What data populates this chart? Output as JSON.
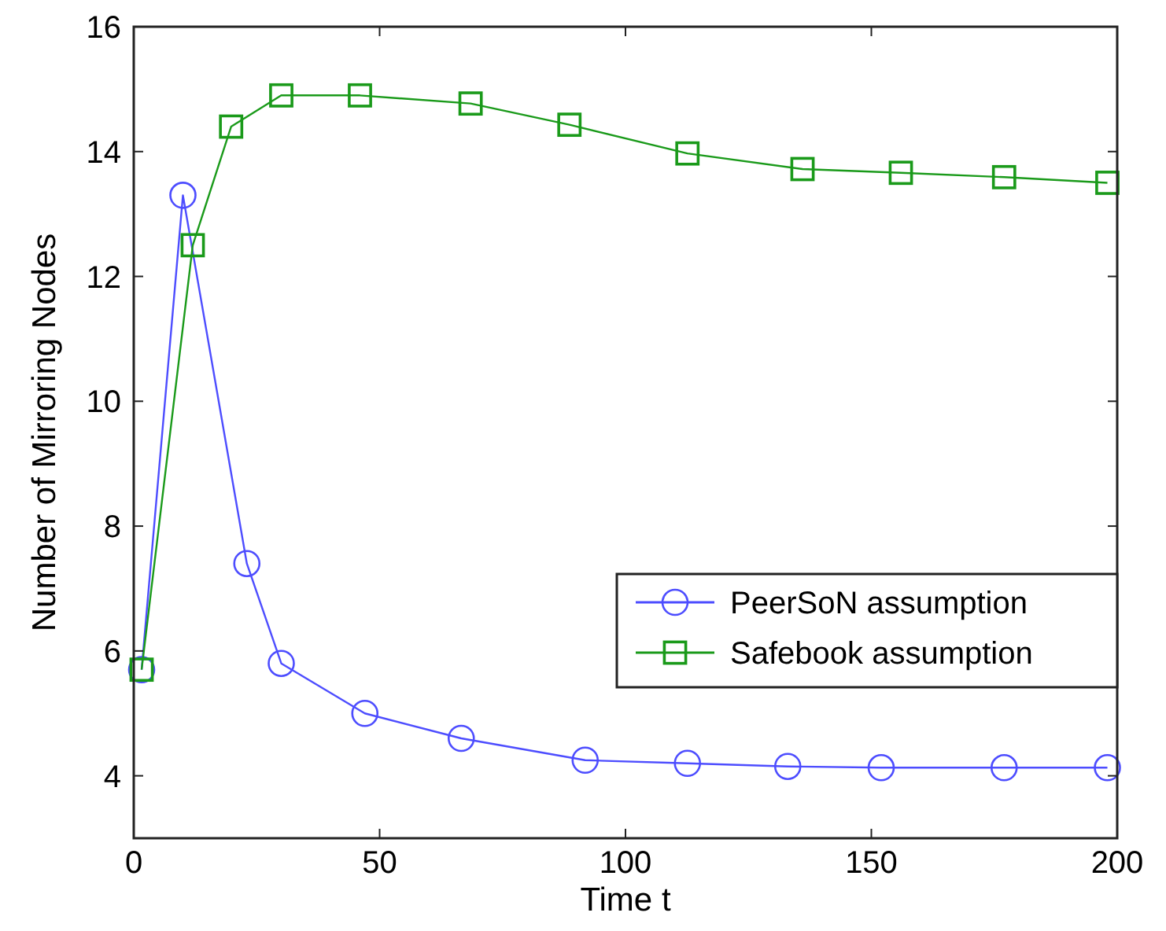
{
  "chart_data": {
    "type": "line",
    "xlabel": "Time t",
    "ylabel": "Number of Mirroring Nodes",
    "xlim": [
      0,
      200
    ],
    "xticks": [
      0,
      50,
      100,
      150,
      200
    ],
    "ylim": [
      3,
      16
    ],
    "yticks": [
      4,
      6,
      8,
      10,
      12,
      14,
      16
    ],
    "legend": "bottom right",
    "grid": false,
    "series": [
      {
        "name": "PeerSoN assumption",
        "color": "#4d4dff",
        "marker": "circle",
        "x": [
          1.6,
          10,
          23,
          30,
          47,
          66.6,
          91.8,
          112.6,
          133,
          152,
          177,
          198
        ],
        "values": [
          5.7,
          13.3,
          7.4,
          5.8,
          5.0,
          4.6,
          4.25,
          4.2,
          4.15,
          4.13,
          4.13,
          4.13
        ]
      },
      {
        "name": "Safebook assumption",
        "color": "#1a9a1a",
        "marker": "square",
        "x": [
          1.6,
          12,
          19.8,
          30,
          46,
          68.5,
          88.6,
          112.6,
          136,
          156,
          177,
          198
        ],
        "values": [
          5.7,
          12.5,
          14.4,
          14.9,
          14.9,
          14.77,
          14.43,
          13.97,
          13.72,
          13.66,
          13.59,
          13.5
        ]
      }
    ]
  }
}
